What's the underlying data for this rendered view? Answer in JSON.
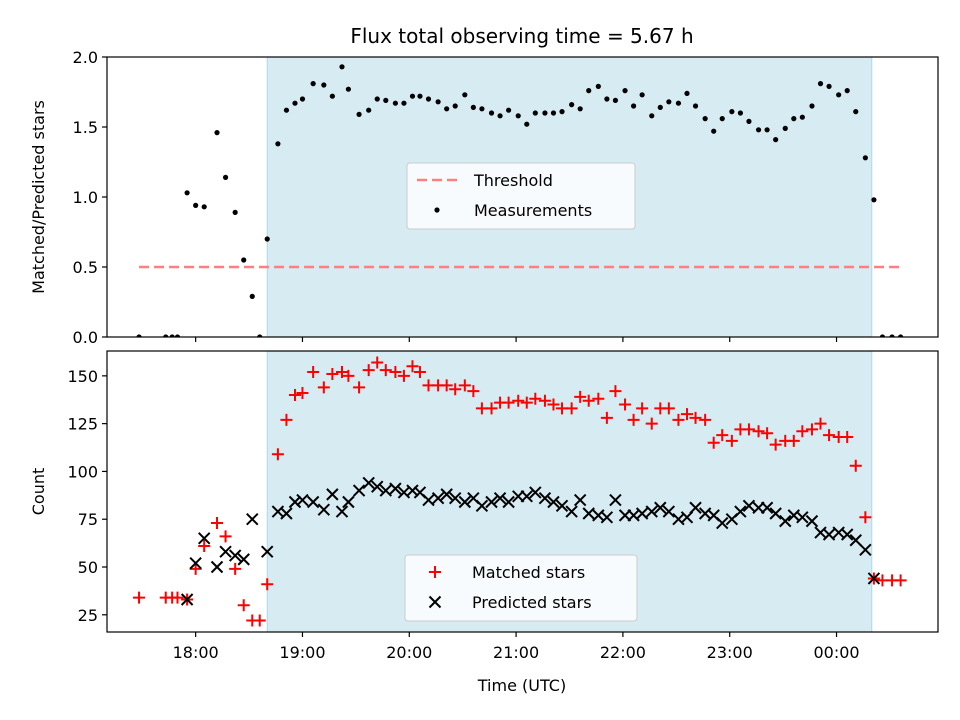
{
  "title": "Flux total observing time = 5.67 h",
  "xlabel": "Time (UTC)",
  "xticks": [
    "18:00",
    "19:00",
    "20:00",
    "21:00",
    "22:00",
    "23:00",
    "00:00"
  ],
  "colors": {
    "shade": "#add8e6",
    "threshold": "#ff7f7f",
    "matched": "#ff0000",
    "predicted": "#000000",
    "measurement": "#000000"
  },
  "chart_data": [
    {
      "type": "scatter",
      "panel": "top",
      "ylabel": "Matched/Predicted stars",
      "xlim": [
        17.17,
        24.95
      ],
      "ylim": [
        0,
        2.0
      ],
      "yticks": [
        0.0,
        0.5,
        1.0,
        1.5,
        2.0
      ],
      "ytick_labels": [
        "0.0",
        "0.5",
        "1.0",
        "1.5",
        "2.0"
      ],
      "shaded_span_hours": [
        18.67,
        24.33
      ],
      "legend_position": "center",
      "threshold": {
        "name": "Threshold",
        "value": 0.5,
        "x_range_hours": [
          17.47,
          24.6
        ]
      },
      "series": [
        {
          "name": "Measurements",
          "x_hours": [
            17.47,
            17.72,
            17.78,
            17.83,
            17.92,
            18.0,
            18.08,
            18.2,
            18.28,
            18.37,
            18.45,
            18.53,
            18.6,
            18.67,
            18.77,
            18.85,
            18.93,
            19.0,
            19.1,
            19.2,
            19.28,
            19.37,
            19.43,
            19.53,
            19.62,
            19.7,
            19.78,
            19.87,
            19.95,
            20.03,
            20.1,
            20.18,
            20.27,
            20.35,
            20.43,
            20.52,
            20.6,
            20.68,
            20.77,
            20.85,
            20.93,
            21.02,
            21.1,
            21.18,
            21.27,
            21.35,
            21.43,
            21.52,
            21.6,
            21.68,
            21.77,
            21.85,
            21.93,
            22.02,
            22.1,
            22.18,
            22.27,
            22.35,
            22.43,
            22.52,
            22.6,
            22.68,
            22.77,
            22.85,
            22.93,
            23.02,
            23.1,
            23.18,
            23.27,
            23.35,
            23.43,
            23.52,
            23.6,
            23.68,
            23.77,
            23.85,
            23.93,
            24.02,
            24.1,
            24.18,
            24.27,
            24.35,
            24.43,
            24.52,
            24.6
          ],
          "y": [
            0.0,
            0.0,
            0.0,
            0.0,
            1.03,
            0.94,
            0.93,
            1.46,
            1.14,
            0.89,
            0.55,
            0.29,
            0.0,
            0.7,
            1.38,
            1.62,
            1.67,
            1.7,
            1.81,
            1.8,
            1.72,
            1.93,
            1.77,
            1.59,
            1.62,
            1.7,
            1.69,
            1.67,
            1.67,
            1.72,
            1.72,
            1.7,
            1.68,
            1.63,
            1.65,
            1.73,
            1.64,
            1.63,
            1.6,
            1.58,
            1.62,
            1.58,
            1.52,
            1.6,
            1.6,
            1.6,
            1.61,
            1.66,
            1.63,
            1.76,
            1.79,
            1.7,
            1.69,
            1.76,
            1.65,
            1.73,
            1.58,
            1.64,
            1.68,
            1.67,
            1.74,
            1.65,
            1.56,
            1.47,
            1.56,
            1.61,
            1.6,
            1.54,
            1.48,
            1.48,
            1.41,
            1.49,
            1.56,
            1.57,
            1.65,
            1.81,
            1.79,
            1.73,
            1.76,
            1.61,
            1.28,
            0.98,
            0.0,
            0.0,
            0.0
          ]
        }
      ]
    },
    {
      "type": "scatter",
      "panel": "bottom",
      "ylabel": "Count",
      "xlim": [
        17.17,
        24.95
      ],
      "ylim": [
        16,
        163
      ],
      "yticks": [
        25,
        50,
        75,
        100,
        125,
        150
      ],
      "ytick_labels": [
        "25",
        "50",
        "75",
        "100",
        "125",
        "150"
      ],
      "shaded_span_hours": [
        18.67,
        24.33
      ],
      "legend_position": "lower center",
      "series": [
        {
          "name": "Matched stars",
          "marker": "plus",
          "x_hours": [
            17.47,
            17.72,
            17.78,
            17.83,
            17.92,
            18.0,
            18.08,
            18.2,
            18.28,
            18.37,
            18.45,
            18.53,
            18.6,
            18.67,
            18.77,
            18.85,
            18.93,
            19.0,
            19.1,
            19.2,
            19.28,
            19.37,
            19.43,
            19.53,
            19.62,
            19.7,
            19.78,
            19.87,
            19.95,
            20.03,
            20.1,
            20.18,
            20.27,
            20.35,
            20.43,
            20.52,
            20.6,
            20.68,
            20.77,
            20.85,
            20.93,
            21.02,
            21.1,
            21.18,
            21.27,
            21.35,
            21.43,
            21.52,
            21.6,
            21.68,
            21.77,
            21.85,
            21.93,
            22.02,
            22.1,
            22.18,
            22.27,
            22.35,
            22.43,
            22.52,
            22.6,
            22.68,
            22.77,
            22.85,
            22.93,
            23.02,
            23.1,
            23.18,
            23.27,
            23.35,
            23.43,
            23.52,
            23.6,
            23.68,
            23.77,
            23.85,
            23.93,
            24.02,
            24.1,
            24.18,
            24.27,
            24.35,
            24.43,
            24.52,
            24.6
          ],
          "y": [
            34,
            34,
            34,
            34,
            33,
            49,
            61,
            73,
            66,
            49,
            30,
            22,
            22,
            41,
            109,
            127,
            140,
            141,
            152,
            144,
            151,
            152,
            150,
            144,
            153,
            157,
            153,
            152,
            150,
            155,
            152,
            145,
            145,
            145,
            143,
            145,
            142,
            133,
            133,
            136,
            136,
            137,
            136,
            138,
            137,
            135,
            133,
            133,
            139,
            137,
            138,
            128,
            142,
            135,
            127,
            133,
            125,
            133,
            133,
            127,
            130,
            128,
            127,
            115,
            119,
            116,
            122,
            122,
            121,
            120,
            114,
            116,
            116,
            121,
            122,
            125,
            119,
            118,
            118,
            103,
            76,
            44,
            43,
            43,
            43
          ]
        },
        {
          "name": "Predicted stars",
          "marker": "x",
          "x_hours": [
            17.92,
            18.0,
            18.08,
            18.2,
            18.28,
            18.37,
            18.45,
            18.53,
            18.67,
            18.77,
            18.85,
            18.93,
            19.0,
            19.1,
            19.2,
            19.28,
            19.37,
            19.43,
            19.53,
            19.62,
            19.7,
            19.78,
            19.87,
            19.95,
            20.03,
            20.1,
            20.18,
            20.27,
            20.35,
            20.43,
            20.52,
            20.6,
            20.68,
            20.77,
            20.85,
            20.93,
            21.02,
            21.1,
            21.18,
            21.27,
            21.35,
            21.43,
            21.52,
            21.6,
            21.68,
            21.77,
            21.85,
            21.93,
            22.02,
            22.1,
            22.18,
            22.27,
            22.35,
            22.43,
            22.52,
            22.6,
            22.68,
            22.77,
            22.85,
            22.93,
            23.02,
            23.1,
            23.18,
            23.27,
            23.35,
            23.43,
            23.52,
            23.6,
            23.68,
            23.77,
            23.85,
            23.93,
            24.02,
            24.1,
            24.18,
            24.27,
            24.35
          ],
          "y": [
            33,
            52,
            65,
            50,
            58,
            56,
            54,
            75,
            58,
            79,
            78,
            84,
            85,
            84,
            80,
            88,
            79,
            84,
            90,
            94,
            92,
            90,
            91,
            89,
            90,
            89,
            85,
            86,
            88,
            86,
            84,
            86,
            82,
            84,
            86,
            84,
            87,
            87,
            89,
            86,
            84,
            82,
            79,
            85,
            78,
            77,
            76,
            85,
            77,
            77,
            78,
            79,
            81,
            79,
            75,
            76,
            81,
            78,
            77,
            73,
            75,
            79,
            82,
            81,
            81,
            78,
            74,
            77,
            76,
            74,
            68,
            67,
            68,
            67,
            64,
            59,
            44
          ]
        }
      ]
    }
  ]
}
